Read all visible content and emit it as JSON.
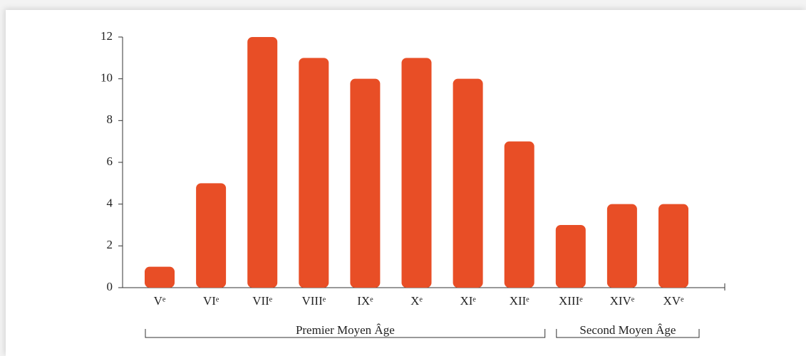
{
  "chart_data": {
    "type": "bar",
    "groups": [
      {
        "label": "Premier Moyen Âge",
        "categories": [
          "Vᵉ",
          "VIᵉ",
          "VIIᵉ",
          "VIIIᵉ",
          "IXᵉ",
          "Xᵉ",
          "XIᵉ",
          "XIIᵉ"
        ]
      },
      {
        "label": "Second Moyen Âge",
        "categories": [
          "XIIIᵉ",
          "XIVᵉ",
          "XVᵉ"
        ]
      }
    ],
    "values": [
      1,
      5,
      12,
      11,
      10,
      11,
      10,
      7,
      3,
      4,
      4
    ],
    "color": "#e84e26",
    "ylim": [
      0,
      12
    ],
    "yticks": [
      0,
      2,
      4,
      6,
      8,
      10,
      12
    ],
    "grid": false
  }
}
